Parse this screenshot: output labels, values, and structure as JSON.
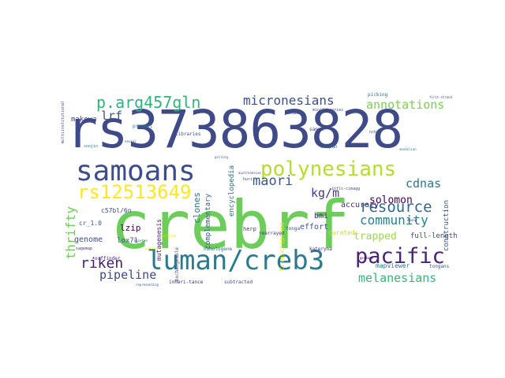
{
  "words": [
    {
      "text": "crebrf",
      "color": "#6ccd5a"
    },
    {
      "text": "rs373863828",
      "color": "#3f4a89"
    },
    {
      "text": "samoans",
      "color": "#3d4e8a"
    },
    {
      "text": "luman/creb3",
      "color": "#2b7b8e"
    },
    {
      "text": "polynesians",
      "color": "#b5de2b"
    },
    {
      "text": "rs12513649",
      "color": "#fde725"
    },
    {
      "text": "p.arg457gln",
      "color": "#2fb47c"
    },
    {
      "text": "pacific",
      "color": "#482475"
    },
    {
      "text": "micronesians",
      "color": "#3b528b"
    },
    {
      "text": "annotations",
      "color": "#7ad151"
    },
    {
      "text": "resource",
      "color": "#31688e"
    },
    {
      "text": "community",
      "color": "#26828e"
    },
    {
      "text": "solomon",
      "color": "#440154"
    },
    {
      "text": "melanesians",
      "color": "#35b779"
    },
    {
      "text": "maori",
      "color": "#38598c"
    },
    {
      "text": "kg/m",
      "color": "#443983"
    },
    {
      "text": "riken",
      "color": "#481d6f"
    },
    {
      "text": "pipeline",
      "color": "#3e4a89"
    },
    {
      "text": "thrifty",
      "color": "#6ece58"
    },
    {
      "text": "lrf",
      "color": "#3b528b"
    },
    {
      "text": "cdnas",
      "color": "#2a788e"
    },
    {
      "text": "trapped",
      "color": "#9fda3a"
    },
    {
      "text": "clones",
      "color": "#2c728e"
    },
    {
      "text": "accuracy",
      "color": "#46327e"
    },
    {
      "text": "effort",
      "color": "#3b528b"
    },
    {
      "text": "bmi",
      "color": "#472c7a"
    },
    {
      "text": "lzip",
      "color": "#440154"
    },
    {
      "text": "lox71",
      "color": "#3a538b"
    },
    {
      "text": "genome",
      "color": "#3d4e8a"
    },
    {
      "text": "encyclopedia",
      "color": "#2c728e"
    },
    {
      "text": "complementary",
      "color": "#375a8c"
    },
    {
      "text": "full-length",
      "color": "#404688"
    },
    {
      "text": "construction",
      "color": "#38588c"
    },
    {
      "text": "mutagenesis",
      "color": "#48186a"
    },
    {
      "text": "makova",
      "color": "#404688"
    },
    {
      "text": "c57bl/6n",
      "color": "#3e4a89"
    },
    {
      "text": "cr_1.0",
      "color": "#38598c"
    },
    {
      "text": "mapviewer",
      "color": "#2a778e"
    },
    {
      "text": "curated",
      "color": "#c8e020"
    },
    {
      "text": "herp",
      "color": "#443a83"
    },
    {
      "text": "tonga",
      "color": "#3b528b"
    },
    {
      "text": "homologene",
      "color": "#31688e"
    },
    {
      "text": "inheri-tance",
      "color": "#482979"
    },
    {
      "text": "subtracted",
      "color": "#3e4c8a"
    },
    {
      "text": "libraries",
      "color": "#3b528b"
    },
    {
      "text": "project",
      "color": "#277f8e"
    },
    {
      "text": "database",
      "color": "#3a548c"
    },
    {
      "text": "minilibraries",
      "color": "#3d4e8a"
    },
    {
      "text": "picking",
      "color": "#31688e"
    },
    {
      "text": "samoa",
      "color": "#3e4989"
    },
    {
      "text": "saipan",
      "color": "#33638d"
    },
    {
      "text": "transcriptome",
      "color": "#e2e418"
    },
    {
      "text": "orffinder",
      "color": "#472d7b"
    },
    {
      "text": "rearrayed",
      "color": "#443983"
    },
    {
      "text": "exchangeable",
      "color": "#3d4e8a"
    },
    {
      "text": "tongans",
      "color": "#39568c"
    },
    {
      "text": "kateryna",
      "color": "#46327e"
    },
    {
      "text": "sagemap",
      "color": "#453781"
    },
    {
      "text": "loxxx",
      "color": "#3e4a89"
    },
    {
      "text": "soojin",
      "color": "#2a788e"
    },
    {
      "text": "mendelian",
      "color": "#25848e"
    },
    {
      "text": "first-strand",
      "color": "#3c4f8a"
    },
    {
      "text": "representing",
      "color": "#38588c"
    },
    {
      "text": "multiinstitutional",
      "color": "#3d4e8a"
    },
    {
      "text": "ncbi",
      "color": "#2f6c8e"
    },
    {
      "text": "dbsnp",
      "color": "#472f7d"
    },
    {
      "text": "polling",
      "color": "#3a548c"
    },
    {
      "text": "infls-cimagg",
      "color": "#3b528b"
    },
    {
      "text": "huri",
      "color": "#3e4a89"
    },
    {
      "text": "genbank",
      "color": "#440154"
    },
    {
      "text": "hinxton",
      "color": "#32648e"
    },
    {
      "text": "neural",
      "color": "#38598c"
    },
    {
      "text": "curation",
      "color": "#d5e21a"
    },
    {
      "text": "genomic",
      "color": "#fde725"
    },
    {
      "text": "austronesian",
      "color": "#3f4788"
    }
  ]
}
